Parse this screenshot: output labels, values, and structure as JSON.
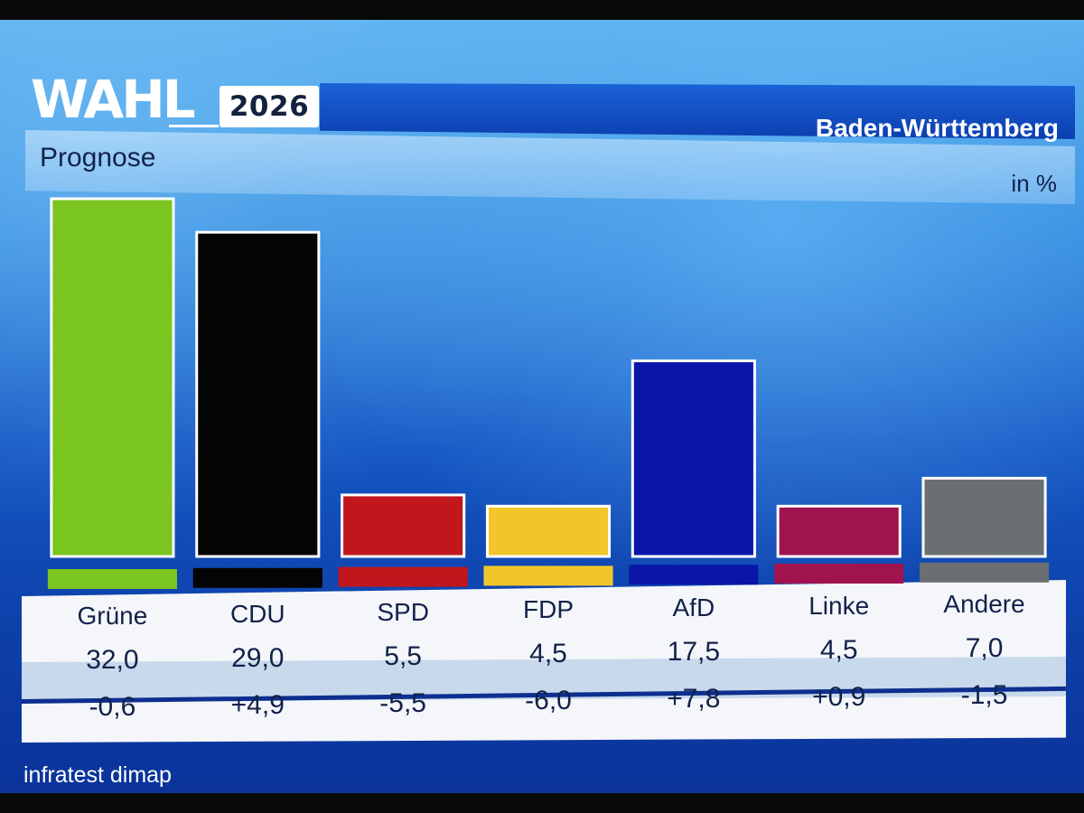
{
  "logo": {
    "wahl": "WAHL",
    "year": "2026"
  },
  "header": {
    "region": "Baden-Württemberg",
    "subtitle": "Prognose",
    "unit": "in %"
  },
  "source": "infratest dimap",
  "colors": {
    "Grüne": "#7ac51f",
    "CDU": "#050505",
    "SPD": "#c0161c",
    "FDP": "#f2c62b",
    "AfD": "#0a16a8",
    "Linke": "#a0134e",
    "Andere": "#6b6f72"
  },
  "chart_data": {
    "type": "bar",
    "title": "Prognose",
    "unit": "in %",
    "categories": [
      "Grüne",
      "CDU",
      "SPD",
      "FDP",
      "AfD",
      "Linke",
      "Andere"
    ],
    "values": [
      32.0,
      29.0,
      5.5,
      4.5,
      17.5,
      4.5,
      7.0
    ],
    "value_labels": [
      "32,0",
      "29,0",
      "5,5",
      "4,5",
      "17,5",
      "4,5",
      "7,0"
    ],
    "changes": [
      -0.6,
      4.9,
      -5.5,
      -6.0,
      7.8,
      0.9,
      -1.5
    ],
    "change_labels": [
      "-0,6",
      "+4,9",
      "-5,5",
      "-6,0",
      "+7,8",
      "+0,9",
      "-1,5"
    ],
    "ylim": [
      0,
      32
    ]
  }
}
